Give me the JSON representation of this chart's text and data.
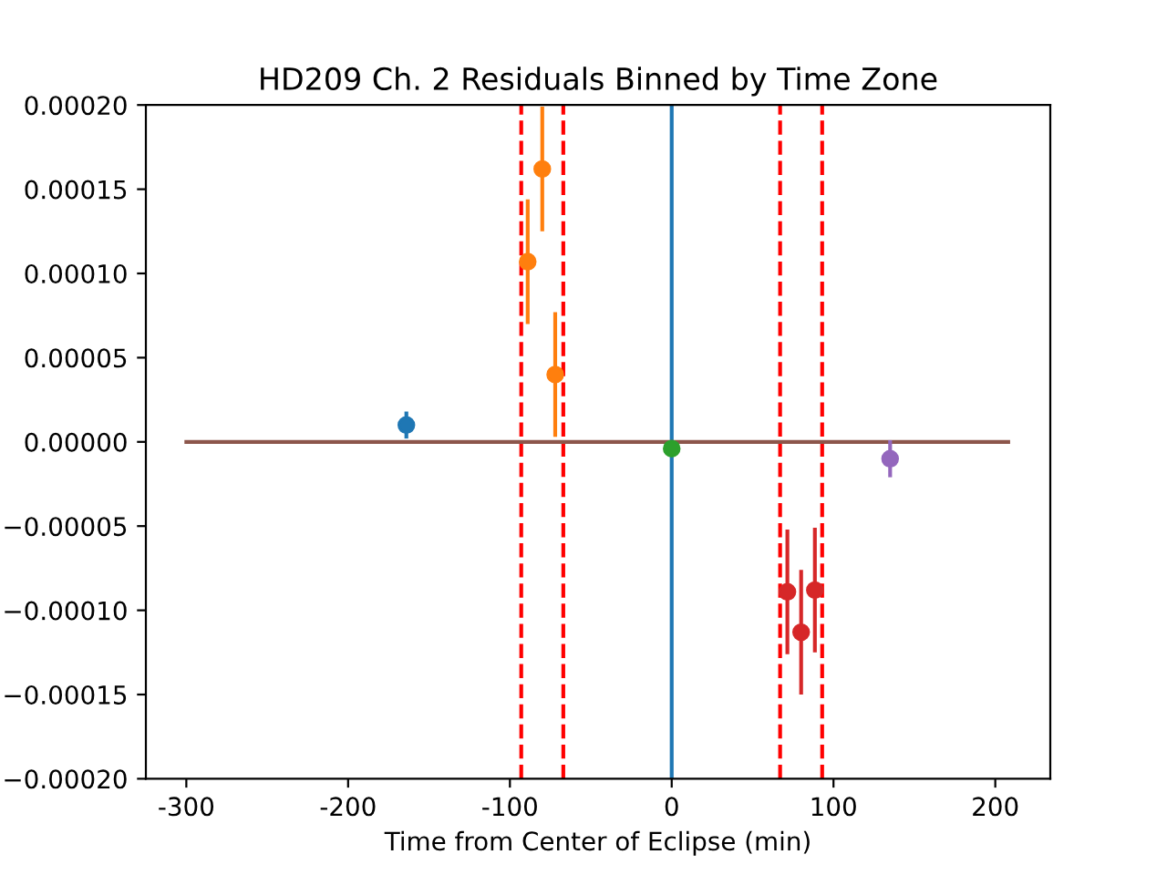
{
  "chart_data": {
    "type": "scatter",
    "title": "HD209 Ch. 2 Residuals Binned by Time Zone",
    "xlabel": "Time from Center of Eclipse (min)",
    "xlim": [
      -325,
      234
    ],
    "xticks": [
      -300,
      -200,
      -100,
      0,
      100,
      200
    ],
    "ylim": [
      -0.0002,
      0.0002
    ],
    "yticks": [
      {
        "value": -0.0002,
        "label": "−0.00020"
      },
      {
        "value": -0.00015,
        "label": "−0.00015"
      },
      {
        "value": -0.0001,
        "label": "−0.00010"
      },
      {
        "value": -5e-05,
        "label": "−0.00005"
      },
      {
        "value": 0,
        "label": "0.00000"
      },
      {
        "value": 5e-05,
        "label": "0.00005"
      },
      {
        "value": 0.0001,
        "label": "0.00010"
      },
      {
        "value": 0.00015,
        "label": "0.00015"
      },
      {
        "value": 0.0002,
        "label": "0.00020"
      }
    ],
    "grid": false,
    "legend": false,
    "marker": "circle",
    "series": [
      {
        "color": "#1f77b4",
        "x": [
          -164
        ],
        "values": [
          1e-05
        ],
        "errors": [
          8e-06
        ]
      },
      {
        "color": "#ff7f0e",
        "x": [
          -89,
          -80,
          -72
        ],
        "values": [
          0.000107,
          0.000162,
          4e-05
        ],
        "errors": [
          3.7e-05,
          3.7e-05,
          3.7e-05
        ]
      },
      {
        "color": "#2ca02c",
        "x": [
          0
        ],
        "values": [
          -4e-06
        ],
        "errors": [
          2e-06
        ]
      },
      {
        "color": "#d62728",
        "x": [
          71.5,
          80,
          88.5
        ],
        "values": [
          -8.9e-05,
          -0.000113,
          -8.8e-05
        ],
        "errors": [
          3.7e-05,
          3.7e-05,
          3.7e-05
        ]
      },
      {
        "color": "#9467bd",
        "x": [
          135
        ],
        "values": [
          -1e-05
        ],
        "errors": [
          1.1e-05
        ]
      },
      {
        "type": "line",
        "color": "#8c564b",
        "x": [
          -300,
          208
        ],
        "values": [
          0,
          0
        ],
        "marker": "none"
      }
    ],
    "ref_lines": [
      {
        "axis": "x",
        "value": 0,
        "color": "#1f77b4",
        "line_style": "solid"
      },
      {
        "axis": "x",
        "value": -93,
        "color": "#ff0000",
        "line_style": "dashed"
      },
      {
        "axis": "x",
        "value": -67,
        "color": "#ff0000",
        "line_style": "dashed"
      },
      {
        "axis": "x",
        "value": 67,
        "color": "#ff0000",
        "line_style": "dashed"
      },
      {
        "axis": "x",
        "value": 93,
        "color": "#ff0000",
        "line_style": "dashed"
      }
    ]
  }
}
